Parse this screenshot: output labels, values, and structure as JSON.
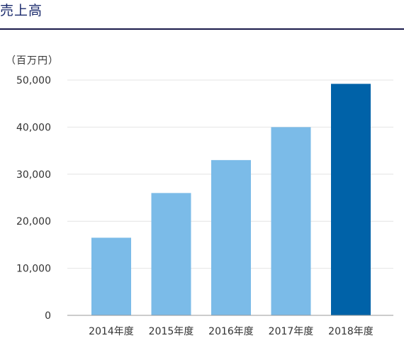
{
  "page": {
    "title": "売上高"
  },
  "chart_data": {
    "type": "bar",
    "unit_label": "（百万円）",
    "categories": [
      "2014年度",
      "2015年度",
      "2016年度",
      "2017年度",
      "2018年度"
    ],
    "values": [
      16500,
      26000,
      33000,
      40000,
      49200
    ],
    "ylim": [
      0,
      50000
    ],
    "yticks": [
      0,
      10000,
      20000,
      30000,
      40000,
      50000
    ],
    "ytick_labels": [
      "0",
      "10,000",
      "20,000",
      "30,000",
      "40,000",
      "50,000"
    ],
    "grid": true,
    "colors": {
      "bar": "#7bbbe8",
      "bar_highlight": "#0062a8",
      "grid": "#e4e4e4",
      "axis": "#999999"
    },
    "highlight_index": 4
  }
}
